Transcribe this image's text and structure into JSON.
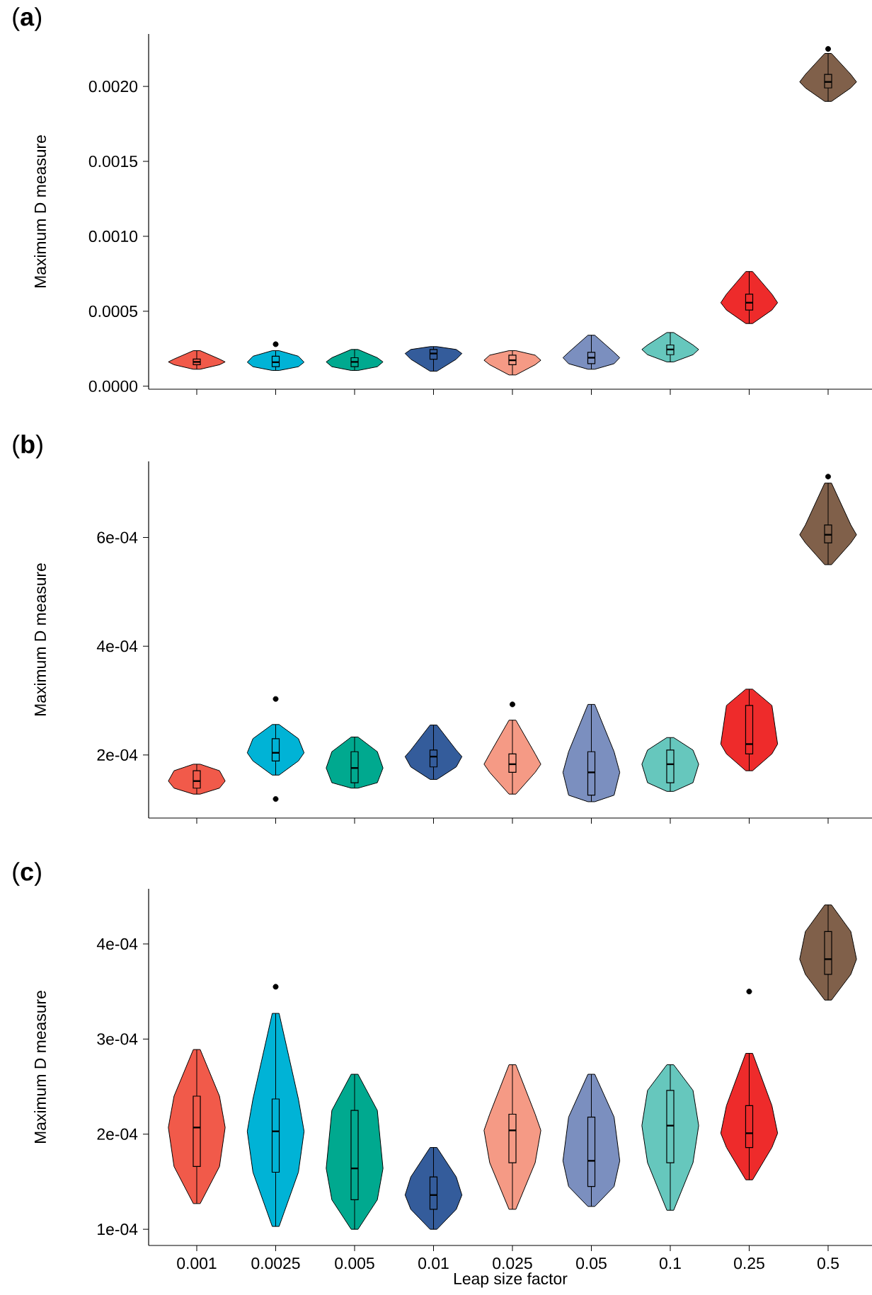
{
  "chart_data": [
    {
      "type": "box",
      "title": "(**a**)",
      "ylabel": "Maximum D measure",
      "tick_labels": "y",
      "categories": [
        "0.001",
        "0.0025",
        "0.005",
        "0.01",
        "0.025",
        "0.05",
        "0.1",
        "0.25",
        "0.5"
      ],
      "colors": [
        "#f15a4a",
        "#00b3d6",
        "#00a98f",
        "#345c9b",
        "#f59a85",
        "#7b8fbf",
        "#66c7bd",
        "#ee2b2b",
        "#80604a"
      ],
      "ylim": [
        -2e-05,
        0.00235
      ],
      "yticks": [
        {
          "value": 0,
          "label": "0.0000"
        },
        {
          "value": 0.0005,
          "label": "0.0005"
        },
        {
          "value": 0.001,
          "label": "0.0010"
        },
        {
          "value": 0.0015,
          "label": "0.0015"
        },
        {
          "value": 0.002,
          "label": "0.0020"
        }
      ],
      "boxes": [
        {
          "low": 0.000113,
          "q1": 0.000143,
          "median": 0.000162,
          "q3": 0.000181,
          "high": 0.000237
        },
        {
          "low": 0.000105,
          "q1": 0.00013,
          "median": 0.00016,
          "q3": 0.0002,
          "high": 0.000237,
          "outliers": [
            0.00028
          ]
        },
        {
          "low": 0.000105,
          "q1": 0.00013,
          "median": 0.000162,
          "q3": 0.00019,
          "high": 0.000245
        },
        {
          "low": 0.0001,
          "q1": 0.00018,
          "median": 0.000218,
          "q3": 0.000245,
          "high": 0.000264
        },
        {
          "low": 7.5e-05,
          "q1": 0.000143,
          "median": 0.000173,
          "q3": 0.000207,
          "high": 0.000237
        },
        {
          "low": 0.000113,
          "q1": 0.00015,
          "median": 0.00019,
          "q3": 0.000226,
          "high": 0.00034
        },
        {
          "low": 0.000162,
          "q1": 0.00021,
          "median": 0.000245,
          "q3": 0.000275,
          "high": 0.000358
        },
        {
          "low": 0.000418,
          "q1": 0.000508,
          "median": 0.000557,
          "q3": 0.000614,
          "high": 0.000765
        },
        {
          "low": 0.0019,
          "q1": 0.00199,
          "median": 0.00203,
          "q3": 0.00208,
          "high": 0.00222,
          "outliers": [
            0.00225
          ]
        }
      ]
    },
    {
      "type": "box",
      "title": "(**b**)",
      "ylabel": "Maximum D measure",
      "tick_labels": "y",
      "categories": [
        "0.001",
        "0.0025",
        "0.005",
        "0.01",
        "0.025",
        "0.05",
        "0.1",
        "0.25",
        "0.5"
      ],
      "colors": [
        "#f15a4a",
        "#00b3d6",
        "#00a98f",
        "#345c9b",
        "#f59a85",
        "#7b8fbf",
        "#66c7bd",
        "#ee2b2b",
        "#80604a"
      ],
      "ylim": [
        8.4e-05,
        0.00074
      ],
      "yticks": [
        {
          "value": 0.0002,
          "label": "2e-04"
        },
        {
          "value": 0.0004,
          "label": "4e-04"
        },
        {
          "value": 0.0006,
          "label": "6e-04"
        }
      ],
      "boxes": [
        {
          "low": 0.000128,
          "q1": 0.000139,
          "median": 0.000152,
          "q3": 0.000171,
          "high": 0.000183
        },
        {
          "low": 0.000163,
          "q1": 0.000189,
          "median": 0.000204,
          "q3": 0.00023,
          "high": 0.000256,
          "outliers": [
            0.000119,
            0.000303
          ]
        },
        {
          "low": 0.000139,
          "q1": 0.000149,
          "median": 0.000176,
          "q3": 0.000206,
          "high": 0.000233
        },
        {
          "low": 0.000155,
          "q1": 0.000178,
          "median": 0.000197,
          "q3": 0.000209,
          "high": 0.000255
        },
        {
          "low": 0.000128,
          "q1": 0.000168,
          "median": 0.000183,
          "q3": 0.000202,
          "high": 0.000264,
          "outliers": [
            0.000293
          ]
        },
        {
          "low": 0.000114,
          "q1": 0.000126,
          "median": 0.000168,
          "q3": 0.000206,
          "high": 0.000293
        },
        {
          "low": 0.000133,
          "q1": 0.000149,
          "median": 0.000183,
          "q3": 0.000209,
          "high": 0.000232
        },
        {
          "low": 0.000171,
          "q1": 0.000202,
          "median": 0.00022,
          "q3": 0.000291,
          "high": 0.000321
        },
        {
          "low": 0.00055,
          "q1": 0.00059,
          "median": 0.000605,
          "q3": 0.000623,
          "high": 0.0007,
          "outliers": [
            0.000712
          ]
        }
      ]
    },
    {
      "type": "box",
      "title": "(**c**)",
      "ylabel": "Maximum D measure",
      "xlabel": "Leap size factor",
      "categories": [
        "0.001",
        "0.0025",
        "0.005",
        "0.01",
        "0.025",
        "0.05",
        "0.1",
        "0.25",
        "0.5"
      ],
      "colors": [
        "#f15a4a",
        "#00b3d6",
        "#00a98f",
        "#345c9b",
        "#f59a85",
        "#7b8fbf",
        "#66c7bd",
        "#ee2b2b",
        "#80604a"
      ],
      "ylim": [
        8.3e-05,
        0.000458
      ],
      "yticks": [
        {
          "value": 0.0001,
          "label": "1e-04"
        },
        {
          "value": 0.0002,
          "label": "2e-04"
        },
        {
          "value": 0.0003,
          "label": "3e-04"
        },
        {
          "value": 0.0004,
          "label": "4e-04"
        }
      ],
      "boxes": [
        {
          "low": 0.000127,
          "q1": 0.000166,
          "median": 0.000207,
          "q3": 0.00024,
          "high": 0.000289
        },
        {
          "low": 0.000103,
          "q1": 0.00016,
          "median": 0.000203,
          "q3": 0.000237,
          "high": 0.000327,
          "outliers": [
            0.000355
          ]
        },
        {
          "low": 0.0001,
          "q1": 0.000131,
          "median": 0.000164,
          "q3": 0.000225,
          "high": 0.000263
        },
        {
          "low": 0.0001,
          "q1": 0.000121,
          "median": 0.000136,
          "q3": 0.000155,
          "high": 0.000186
        },
        {
          "low": 0.000121,
          "q1": 0.00017,
          "median": 0.000204,
          "q3": 0.000221,
          "high": 0.000273
        },
        {
          "low": 0.000124,
          "q1": 0.000145,
          "median": 0.000172,
          "q3": 0.000218,
          "high": 0.000263
        },
        {
          "low": 0.00012,
          "q1": 0.00017,
          "median": 0.000209,
          "q3": 0.000246,
          "high": 0.000273
        },
        {
          "low": 0.000152,
          "q1": 0.000186,
          "median": 0.000201,
          "q3": 0.00023,
          "high": 0.000285,
          "outliers": [
            0.00035
          ]
        },
        {
          "low": 0.000341,
          "q1": 0.000368,
          "median": 0.000384,
          "q3": 0.000413,
          "high": 0.000441
        }
      ]
    }
  ]
}
